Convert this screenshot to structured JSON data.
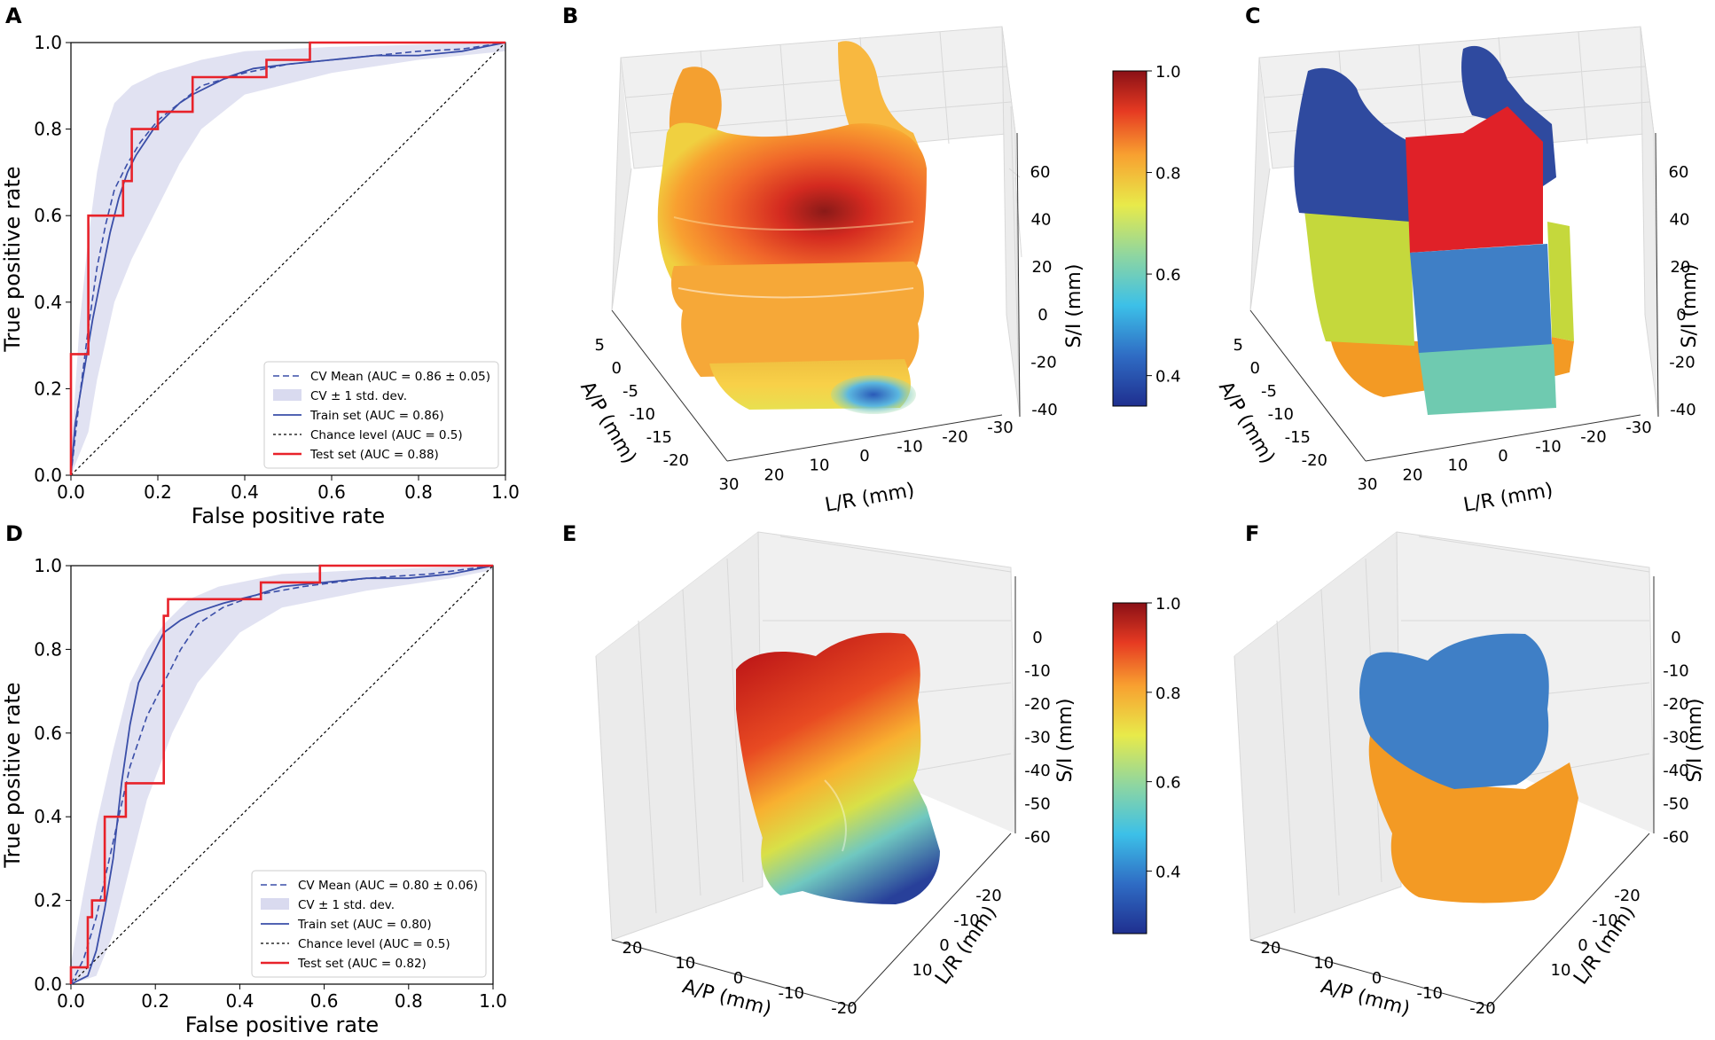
{
  "panel_letters": {
    "a": "A",
    "b": "B",
    "c": "C",
    "d": "D",
    "e": "E",
    "f": "F"
  },
  "colors": {
    "cv_mean": "#3a4ea8",
    "train": "#3a4ea8",
    "test": "#e8222a",
    "chance": "#000000",
    "band": "#c9cbe8",
    "seg_blue": "#2f4a9f",
    "seg_red": "#e02128",
    "seg_lime": "#c5d83c",
    "seg_steel": "#3f7fc6",
    "seg_orange": "#f39a24",
    "seg_teal": "#6fcab0"
  },
  "chart_data": [
    {
      "id": "A",
      "type": "line",
      "xlabel": "False positive rate",
      "ylabel": "True positive rate",
      "xlim": [
        0,
        1
      ],
      "ylim": [
        0,
        1
      ],
      "ticks": [
        "0.0",
        "0.2",
        "0.4",
        "0.6",
        "0.8",
        "1.0"
      ],
      "legend_position": "lower-right",
      "legend": [
        "CV Mean (AUC = 0.86 ± 0.05)",
        "CV ± 1 std. dev.",
        "Train set (AUC = 0.86)",
        "Chance level (AUC = 0.5)",
        "Test set (AUC = 0.88)"
      ],
      "series": [
        {
          "name": "Test set (AUC = 0.88)",
          "style": "test",
          "points": [
            [
              0,
              0
            ],
            [
              0,
              0.28
            ],
            [
              0.04,
              0.28
            ],
            [
              0.04,
              0.6
            ],
            [
              0.12,
              0.6
            ],
            [
              0.12,
              0.68
            ],
            [
              0.14,
              0.68
            ],
            [
              0.14,
              0.8
            ],
            [
              0.2,
              0.8
            ],
            [
              0.2,
              0.84
            ],
            [
              0.28,
              0.84
            ],
            [
              0.28,
              0.92
            ],
            [
              0.45,
              0.92
            ],
            [
              0.45,
              0.96
            ],
            [
              0.55,
              0.96
            ],
            [
              0.55,
              1.0
            ],
            [
              1.0,
              1.0
            ]
          ]
        },
        {
          "name": "Train set (AUC = 0.86)",
          "style": "train",
          "points": [
            [
              0,
              0
            ],
            [
              0.01,
              0.12
            ],
            [
              0.03,
              0.24
            ],
            [
              0.05,
              0.36
            ],
            [
              0.07,
              0.46
            ],
            [
              0.09,
              0.56
            ],
            [
              0.11,
              0.64
            ],
            [
              0.13,
              0.7
            ],
            [
              0.15,
              0.74
            ],
            [
              0.17,
              0.77
            ],
            [
              0.19,
              0.8
            ],
            [
              0.22,
              0.83
            ],
            [
              0.25,
              0.86
            ],
            [
              0.28,
              0.88
            ],
            [
              0.32,
              0.9
            ],
            [
              0.36,
              0.92
            ],
            [
              0.42,
              0.94
            ],
            [
              0.5,
              0.95
            ],
            [
              0.6,
              0.96
            ],
            [
              0.7,
              0.97
            ],
            [
              0.8,
              0.97
            ],
            [
              0.9,
              0.98
            ],
            [
              0.95,
              0.99
            ],
            [
              1,
              1
            ]
          ]
        },
        {
          "name": "CV Mean (AUC = 0.86 ± 0.05)",
          "style": "cv",
          "points": [
            [
              0,
              0
            ],
            [
              0.02,
              0.18
            ],
            [
              0.04,
              0.34
            ],
            [
              0.06,
              0.48
            ],
            [
              0.08,
              0.58
            ],
            [
              0.1,
              0.66
            ],
            [
              0.13,
              0.72
            ],
            [
              0.16,
              0.77
            ],
            [
              0.2,
              0.82
            ],
            [
              0.25,
              0.86
            ],
            [
              0.3,
              0.9
            ],
            [
              0.4,
              0.93
            ],
            [
              0.5,
              0.95
            ],
            [
              0.6,
              0.96
            ],
            [
              0.7,
              0.97
            ],
            [
              0.8,
              0.98
            ],
            [
              0.9,
              0.985
            ],
            [
              1,
              1
            ]
          ]
        },
        {
          "name": "Chance level (AUC = 0.5)",
          "style": "chance",
          "points": [
            [
              0,
              0
            ],
            [
              1,
              1
            ]
          ]
        }
      ],
      "band_upper": [
        [
          0,
          0.05
        ],
        [
          0.02,
          0.35
        ],
        [
          0.04,
          0.55
        ],
        [
          0.06,
          0.7
        ],
        [
          0.08,
          0.8
        ],
        [
          0.1,
          0.86
        ],
        [
          0.14,
          0.9
        ],
        [
          0.2,
          0.93
        ],
        [
          0.3,
          0.96
        ],
        [
          0.4,
          0.98
        ],
        [
          0.6,
          0.99
        ],
        [
          1,
          1
        ]
      ],
      "band_lower": [
        [
          0,
          0
        ],
        [
          0.04,
          0.1
        ],
        [
          0.06,
          0.22
        ],
        [
          0.1,
          0.4
        ],
        [
          0.14,
          0.5
        ],
        [
          0.2,
          0.62
        ],
        [
          0.25,
          0.72
        ],
        [
          0.3,
          0.8
        ],
        [
          0.4,
          0.88
        ],
        [
          0.6,
          0.93
        ],
        [
          0.8,
          0.96
        ],
        [
          1,
          0.98
        ]
      ]
    },
    {
      "id": "D",
      "type": "line",
      "xlabel": "False positive rate",
      "ylabel": "True positive rate",
      "xlim": [
        0,
        1
      ],
      "ylim": [
        0,
        1
      ],
      "ticks": [
        "0.0",
        "0.2",
        "0.4",
        "0.6",
        "0.8",
        "1.0"
      ],
      "legend_position": "lower-right",
      "legend": [
        "CV Mean (AUC = 0.80 ± 0.06)",
        "CV ± 1 std. dev.",
        "Train set (AUC = 0.80)",
        "Chance level (AUC = 0.5)",
        "Test set (AUC = 0.82)"
      ],
      "series": [
        {
          "name": "Test set (AUC = 0.82)",
          "style": "test",
          "points": [
            [
              0,
              0
            ],
            [
              0,
              0.04
            ],
            [
              0.04,
              0.04
            ],
            [
              0.04,
              0.16
            ],
            [
              0.05,
              0.16
            ],
            [
              0.05,
              0.2
            ],
            [
              0.08,
              0.2
            ],
            [
              0.08,
              0.4
            ],
            [
              0.13,
              0.4
            ],
            [
              0.13,
              0.48
            ],
            [
              0.22,
              0.48
            ],
            [
              0.22,
              0.88
            ],
            [
              0.23,
              0.88
            ],
            [
              0.23,
              0.92
            ],
            [
              0.45,
              0.92
            ],
            [
              0.45,
              0.96
            ],
            [
              0.59,
              0.96
            ],
            [
              0.59,
              1.0
            ],
            [
              1,
              1
            ]
          ]
        },
        {
          "name": "Train set (AUC = 0.80)",
          "style": "train",
          "points": [
            [
              0,
              0
            ],
            [
              0.04,
              0.02
            ],
            [
              0.06,
              0.08
            ],
            [
              0.08,
              0.18
            ],
            [
              0.1,
              0.3
            ],
            [
              0.12,
              0.48
            ],
            [
              0.14,
              0.62
            ],
            [
              0.16,
              0.72
            ],
            [
              0.18,
              0.76
            ],
            [
              0.2,
              0.8
            ],
            [
              0.22,
              0.84
            ],
            [
              0.26,
              0.87
            ],
            [
              0.3,
              0.89
            ],
            [
              0.36,
              0.91
            ],
            [
              0.44,
              0.93
            ],
            [
              0.5,
              0.95
            ],
            [
              0.6,
              0.96
            ],
            [
              0.7,
              0.97
            ],
            [
              0.8,
              0.97
            ],
            [
              0.9,
              0.98
            ],
            [
              0.95,
              0.99
            ],
            [
              1,
              1
            ]
          ]
        },
        {
          "name": "CV Mean (AUC = 0.80 ± 0.06)",
          "style": "cv",
          "points": [
            [
              0,
              0
            ],
            [
              0.03,
              0.06
            ],
            [
              0.06,
              0.16
            ],
            [
              0.1,
              0.34
            ],
            [
              0.14,
              0.52
            ],
            [
              0.18,
              0.64
            ],
            [
              0.22,
              0.72
            ],
            [
              0.26,
              0.8
            ],
            [
              0.3,
              0.86
            ],
            [
              0.36,
              0.9
            ],
            [
              0.44,
              0.93
            ],
            [
              0.55,
              0.95
            ],
            [
              0.7,
              0.97
            ],
            [
              0.85,
              0.98
            ],
            [
              1,
              1
            ]
          ]
        },
        {
          "name": "Chance level (AUC = 0.5)",
          "style": "chance",
          "points": [
            [
              0,
              0
            ],
            [
              1,
              1
            ]
          ]
        }
      ],
      "band_upper": [
        [
          0,
          0.05
        ],
        [
          0.03,
          0.22
        ],
        [
          0.06,
          0.38
        ],
        [
          0.1,
          0.56
        ],
        [
          0.14,
          0.72
        ],
        [
          0.18,
          0.8
        ],
        [
          0.22,
          0.86
        ],
        [
          0.28,
          0.92
        ],
        [
          0.35,
          0.95
        ],
        [
          0.5,
          0.98
        ],
        [
          0.7,
          0.99
        ],
        [
          1,
          1
        ]
      ],
      "band_lower": [
        [
          0,
          0
        ],
        [
          0.06,
          0.02
        ],
        [
          0.1,
          0.12
        ],
        [
          0.14,
          0.28
        ],
        [
          0.18,
          0.44
        ],
        [
          0.24,
          0.6
        ],
        [
          0.3,
          0.72
        ],
        [
          0.4,
          0.84
        ],
        [
          0.5,
          0.9
        ],
        [
          0.7,
          0.94
        ],
        [
          0.9,
          0.97
        ],
        [
          1,
          0.99
        ]
      ]
    }
  ],
  "panels3d": {
    "b": {
      "z_ticks": [
        "60",
        "40",
        "20",
        "0",
        "-20",
        "-40"
      ],
      "ap_ticks": [
        "5",
        "0",
        "-5",
        "-10",
        "-15",
        "-20"
      ],
      "lr_ticks": [
        "30",
        "20",
        "10",
        "0",
        "-10",
        "-20",
        "-30"
      ],
      "z_label": "S/I (mm)",
      "ap_label": "A/P (mm)",
      "lr_label": "L/R (mm)"
    },
    "c": {
      "z_ticks": [
        "60",
        "40",
        "20",
        "0",
        "-20",
        "-40"
      ],
      "ap_ticks": [
        "5",
        "0",
        "-5",
        "-10",
        "-15",
        "-20"
      ],
      "lr_ticks": [
        "30",
        "20",
        "10",
        "0",
        "-10",
        "-20",
        "-30"
      ],
      "z_label": "S/I (mm)",
      "ap_label": "A/P (mm)",
      "lr_label": "L/R (mm)"
    },
    "e": {
      "z_ticks": [
        "0",
        "-10",
        "-20",
        "-30",
        "-40",
        "-50",
        "-60"
      ],
      "ap_ticks": [
        "20",
        "10",
        "0",
        "-10",
        "-20"
      ],
      "lr_ticks": [
        "-20",
        "-10",
        "0",
        "10"
      ],
      "z_label": "S/I (mm)",
      "ap_label": "A/P (mm)",
      "lr_label": "L/R (mm)"
    },
    "f": {
      "z_ticks": [
        "0",
        "-10",
        "-20",
        "-30",
        "-40",
        "-50",
        "-60"
      ],
      "ap_ticks": [
        "20",
        "10",
        "0",
        "-10",
        "-20"
      ],
      "lr_ticks": [
        "-20",
        "-10",
        "0",
        "10"
      ],
      "z_label": "S/I (mm)",
      "ap_label": "A/P (mm)",
      "lr_label": "L/R (mm)"
    }
  },
  "colorbar_top": {
    "ticks": [
      1.0,
      0.8,
      0.6,
      0.4
    ],
    "labels": [
      "1.0",
      "0.8",
      "0.6",
      "0.4"
    ],
    "min": 0.34,
    "max": 1.0
  },
  "colorbar_bottom": {
    "ticks": [
      1.0,
      0.8,
      0.6,
      0.4
    ],
    "labels": [
      "1.0",
      "0.8",
      "0.6",
      "0.4"
    ],
    "min": 0.26,
    "max": 1.0
  }
}
